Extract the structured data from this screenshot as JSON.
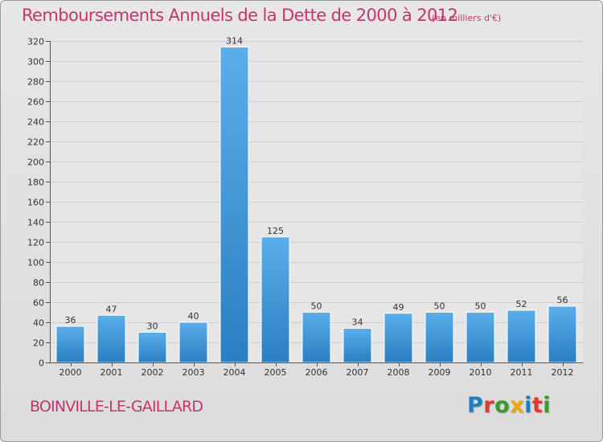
{
  "header": {
    "title": "Remboursements Annuels de la Dette de 2000 à 2012",
    "unit": "(en milliers d'€)"
  },
  "footer": {
    "town": "BOINVILLE-LE-GAILLARD",
    "logo": {
      "letters": [
        "P",
        "r",
        "o",
        "x",
        "i",
        "t",
        "i"
      ],
      "colors": [
        "#1f7ec0",
        "#e23a30",
        "#3a9a2d",
        "#f0a800",
        "#1f7ec0",
        "#e23a30",
        "#3a9a2d"
      ]
    }
  },
  "chart_data": {
    "type": "bar",
    "title": "Remboursements Annuels de la Dette de 2000 à 2012",
    "xlabel": "",
    "ylabel": "",
    "categories": [
      "2000",
      "2001",
      "2002",
      "2003",
      "2004",
      "2005",
      "2006",
      "2007",
      "2008",
      "2009",
      "2010",
      "2011",
      "2012"
    ],
    "values": [
      36,
      47,
      30,
      40,
      314,
      125,
      50,
      34,
      49,
      50,
      50,
      52,
      56
    ],
    "ylim": [
      0,
      320
    ],
    "yticks": [
      0,
      20,
      40,
      60,
      80,
      100,
      120,
      140,
      160,
      180,
      200,
      220,
      240,
      260,
      280,
      300,
      320
    ],
    "grid": true,
    "bar_color": "#3d93d6"
  }
}
